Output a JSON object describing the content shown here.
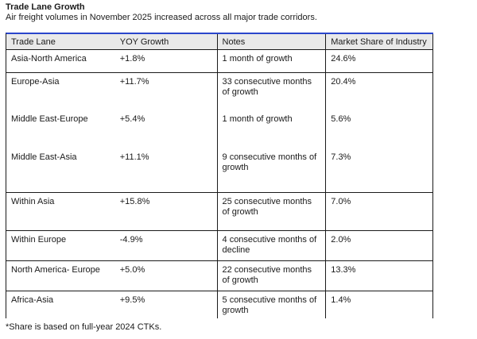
{
  "document": {
    "title": "Trade Lane Growth",
    "subtitle": "Air freight volumes in November 2025 increased across all major trade corridors.",
    "footnote": "*Share is based on full-year 2024 CTKs."
  },
  "table": {
    "columns": {
      "lane": "Trade Lane",
      "yoy": "YOY Growth",
      "notes": "Notes",
      "share": "Market Share of Industry"
    },
    "rows": [
      {
        "lane": "Asia-North America",
        "yoy": "+1.8%",
        "notes": "1 month of growth",
        "share": "24.6%"
      },
      {
        "lane": "Europe-Asia",
        "yoy": "+11.7%",
        "notes": "33 consecutive months of growth",
        "share": "20.4%"
      },
      {
        "lane": "Middle East-Europe",
        "yoy": "+5.4%",
        "notes": "1 month of growth",
        "share": "5.6%"
      },
      {
        "lane": "Middle East-Asia",
        "yoy": "+11.1%",
        "notes": "9 consecutive months of growth",
        "share": "7.3%"
      },
      {
        "lane": "Within Asia",
        "yoy": "+15.8%",
        "notes": "25 consecutive months of growth",
        "share": "7.0%"
      },
      {
        "lane": "Within Europe",
        "yoy": "-4.9%",
        "notes": "4 consecutive months of decline",
        "share": "2.0%"
      },
      {
        "lane": "North America- Europe",
        "yoy": "+5.0%",
        "notes": "22 consecutive months of growth",
        "share": "13.3%"
      },
      {
        "lane": "Africa-Asia",
        "yoy": "+9.5%",
        "notes": "5 consecutive months of growth",
        "share": "1.4%"
      }
    ]
  },
  "colors": {
    "top_border": "#2a46cc",
    "header_bg": "#e9e9e9",
    "grid": "#1a1a1a",
    "text": "#1a1a1a"
  },
  "chart_data": {
    "type": "table",
    "title": "Trade Lane Growth",
    "categories": [
      "Asia-North America",
      "Europe-Asia",
      "Middle East-Europe",
      "Middle East-Asia",
      "Within Asia",
      "Within Europe",
      "North America- Europe",
      "Africa-Asia"
    ],
    "series": [
      {
        "name": "YOY Growth (%)",
        "values": [
          1.8,
          11.7,
          5.4,
          11.1,
          15.8,
          -4.9,
          5.0,
          9.5
        ]
      },
      {
        "name": "Market Share of Industry (%)",
        "values": [
          24.6,
          20.4,
          5.6,
          7.3,
          7.0,
          2.0,
          13.3,
          1.4
        ]
      }
    ]
  }
}
